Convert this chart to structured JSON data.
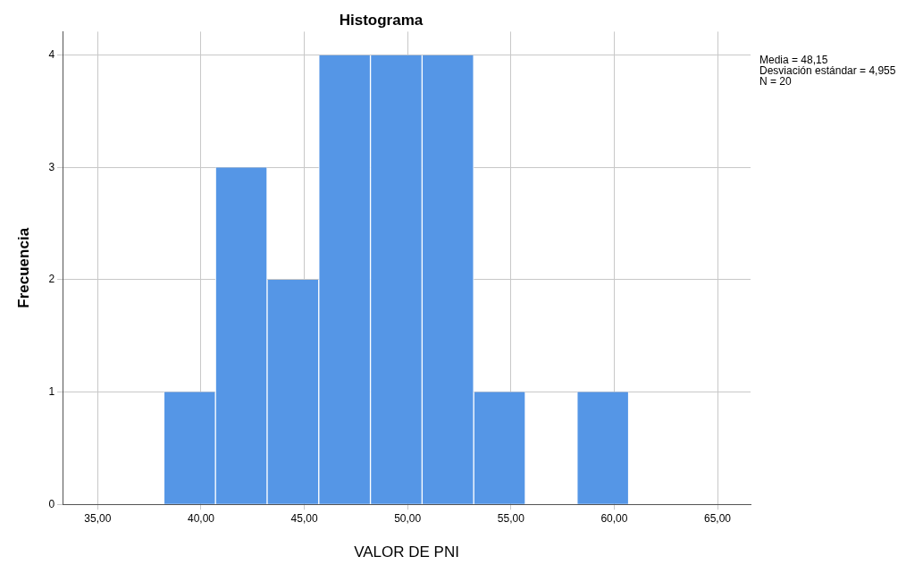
{
  "chart_data": {
    "type": "histogram",
    "title": "Histograma",
    "xlabel": "VALOR DE PNI",
    "ylabel": "Frecuencia",
    "bins": [
      38.2,
      40.7,
      43.2,
      45.7,
      48.2,
      50.7,
      53.2,
      55.7,
      58.2,
      60.7
    ],
    "values": [
      1,
      3,
      2,
      4,
      4,
      4,
      1,
      0,
      1
    ],
    "color": "#5596e6",
    "xlim": [
      33.3,
      66.6
    ],
    "xticks": [
      {
        "value": 35,
        "label": "35,00"
      },
      {
        "value": 40,
        "label": "40,00"
      },
      {
        "value": 45,
        "label": "45,00"
      },
      {
        "value": 50,
        "label": "50,00"
      },
      {
        "value": 55,
        "label": "55,00"
      },
      {
        "value": 60,
        "label": "60,00"
      },
      {
        "value": 65,
        "label": "65,00"
      }
    ],
    "ylim": [
      0,
      4.21
    ],
    "yticks": [
      0,
      1,
      2,
      3,
      4
    ],
    "grid": true,
    "annotations": [
      "Media = 48,15",
      "Desviación estándar = 4,955",
      "N = 20"
    ]
  }
}
